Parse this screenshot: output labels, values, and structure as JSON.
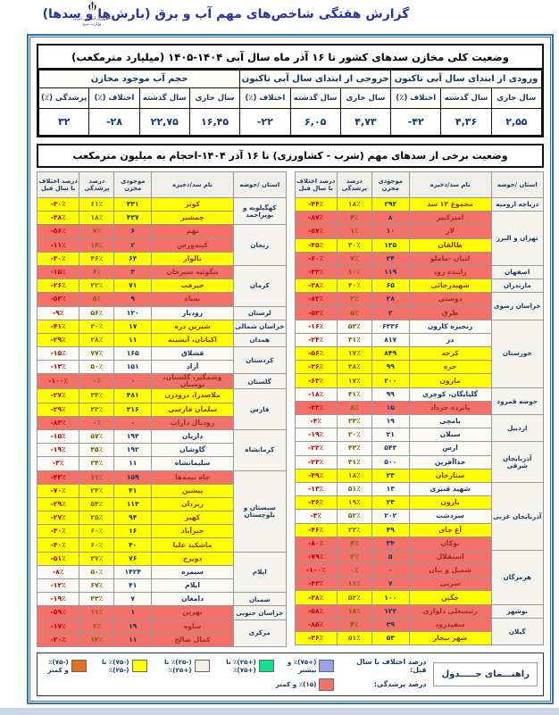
{
  "page": {
    "title": "گزارش هفتگی شاخص‌های مهم آب و برق (بارش‌ها و سدها)",
    "logo_line1": "جمهوری اسلامی ایران",
    "logo_line2": "وزارت نیرو"
  },
  "summary_table": {
    "title": "وضعیت کلی مخازن سدهای کشور تا ۱۶ آذر ماه سال آبی ۱۴۰۴-۱۴۰۵ (میلیارد مترمکعب)",
    "groups": [
      {
        "label": "ورودی از ابتدای سال آبی تاکنون",
        "cols": [
          "سال جاری",
          "سال گذشته",
          "اختلاف (٪)"
        ],
        "values": [
          "۲,۵۵",
          "۴,۳۶",
          "-۴۲"
        ]
      },
      {
        "label": "خروجی از ابتدای سال آبی تاکنون",
        "cols": [
          "سال جاری",
          "سال گذشته",
          "اختلاف (٪)"
        ],
        "values": [
          "۴,۷۳",
          "۶,۰۵",
          "-۲۲"
        ]
      },
      {
        "label": "حجم آب موجود مخازن",
        "cols": [
          "سال جاری",
          "سال گذشته",
          "اختلاف (٪)",
          "پرشدگی (٪)"
        ],
        "values": [
          "۱۶,۴۵",
          "۲۲,۷۵",
          "-۲۸",
          "۳۲"
        ]
      }
    ]
  },
  "dams_table": {
    "title": "وضعیت برخی از سدهای مهم (شرب - کشاورزی) تا ۱۶ آذر ۱۴۰۴-احجام به میلیون مترمکعب",
    "columns": [
      "استان /حوضه",
      "نام سد/ذخیره",
      "موجودی مخزن",
      "درصد پرشدگی",
      "درصد اختلاف با سال قبل"
    ],
    "right_rows": [
      {
        "province": "دریاچه ارومیه",
        "span": 1,
        "dam": "مجموع ۱۳ سد",
        "storage": "۲۹۲",
        "fill": "۱۸٪",
        "diff": "-۴۴٪",
        "color": "yellow"
      },
      {
        "province": "تهران و البرز",
        "span": 4,
        "dam": "امیرکبیر",
        "storage": "۸",
        "fill": "۴٪",
        "diff": "-۸۷٪",
        "color": "red"
      },
      {
        "dam": "لار",
        "storage": "۱۰",
        "fill": "۱٪",
        "diff": "-۵۷٪",
        "color": "red"
      },
      {
        "dam": "طالقان",
        "storage": "۱۲۵",
        "fill": "۳۰٪",
        "diff": "-۴۵٪",
        "color": "yellow"
      },
      {
        "dam": "لتیان -ماملو",
        "storage": "۲۴",
        "fill": "۷٪",
        "diff": "-۶۰٪",
        "color": "red"
      },
      {
        "province": "اصفهان",
        "span": 1,
        "dam": "زاینده رود",
        "storage": "۱۱۹",
        "fill": "۱۰٪",
        "diff": "-۳۳٪",
        "color": "red"
      },
      {
        "province": "مازندران",
        "span": 1,
        "dam": "شهیدرجائی",
        "storage": "۶۵",
        "fill": "۴۰٪",
        "diff": "-۳۸٪",
        "color": "yellow"
      },
      {
        "province": "خراسان رضوی",
        "span": 2,
        "dam": "دوستی",
        "storage": "۲۸",
        "fill": "۲٪",
        "diff": "-۸۳٪",
        "color": "red"
      },
      {
        "dam": "طرق",
        "storage": "۲",
        "fill": "۵٪",
        "diff": "-۵۳٪",
        "color": "red"
      },
      {
        "province": "خوزستان",
        "span": 5,
        "dam": "زنجیره کارون",
        "storage": "۶۳۳۶",
        "fill": "۵۳٪",
        "diff": "-۱۶٪",
        "color": "white"
      },
      {
        "dam": "دز",
        "storage": "۸۱۷",
        "fill": "۳۱٪",
        "diff": "-۲۴٪",
        "color": "white"
      },
      {
        "dam": "کرخه",
        "storage": "۸۴۹",
        "fill": "۱۷٪",
        "diff": "-۵۶٪",
        "color": "yellow"
      },
      {
        "dam": "جره",
        "storage": "۹۹",
        "fill": "۳۸٪",
        "diff": "-۳۶٪",
        "color": "yellow"
      },
      {
        "dam": "مارون",
        "storage": "۲۰۰",
        "fill": "۱۷٪",
        "diff": "-۶۳٪",
        "color": "yellow"
      },
      {
        "province": "حوضه قمرود",
        "span": 2,
        "dam": "گلپایگان، کوچری",
        "storage": "۹۹",
        "fill": "۴۱٪",
        "diff": "-۱۸٪",
        "color": "white"
      },
      {
        "dam": "پانزده خرداد",
        "storage": "۱۵",
        "fill": "۸٪",
        "diff": "-۲۳٪",
        "color": "red"
      },
      {
        "province": "اردبیل",
        "span": 2,
        "dam": "یامچی",
        "storage": "۱۹",
        "fill": "۲۳٪",
        "diff": "-۴٪",
        "color": "white"
      },
      {
        "dam": "سبلان",
        "storage": "۲۱",
        "fill": "۲۰٪",
        "diff": "-۱۹٪",
        "color": "white"
      },
      {
        "province": "آذربایجان شرقی",
        "span": 3,
        "dam": "ارس",
        "storage": "۵۴۳",
        "fill": "۴۳٪",
        "diff": "-۲۳٪",
        "color": "white"
      },
      {
        "dam": "خداآفرین",
        "storage": "۵۰۰",
        "fill": "۳۱٪",
        "diff": "-۲۳٪",
        "color": "white"
      },
      {
        "dam": "ستارخان",
        "storage": "۲۳",
        "fill": "۱۸٪",
        "diff": "-۴۹٪",
        "color": "yellow"
      },
      {
        "province": "آذربایجان غربی",
        "span": 5,
        "dam": "شهید قنبری",
        "storage": "۱۳",
        "fill": "۵۱٪",
        "diff": "-۱۳٪",
        "color": "white"
      },
      {
        "dam": "بارون",
        "storage": "۲۳",
        "fill": "۱۹٪",
        "diff": "-۳۶٪",
        "color": "yellow"
      },
      {
        "dam": "سردشت",
        "storage": "۲۰۲",
        "fill": "۵۲٪",
        "diff": "-۳٪",
        "color": "white"
      },
      {
        "dam": "آغ چای",
        "storage": "۴۹",
        "fill": "۲۳٪",
        "diff": "-۴۶٪",
        "color": "yellow"
      },
      {
        "dam": "بوکان",
        "storage": "۳۴",
        "fill": "۴٪",
        "diff": "-۸۰٪",
        "color": "red"
      },
      {
        "province": "هرمزگان",
        "span": 4,
        "dam": "استقلال",
        "storage": "۵",
        "fill": "۲٪",
        "diff": "-۷۹٪",
        "color": "red"
      },
      {
        "dam": "شمیل و نیان",
        "storage": "۰",
        "fill": "۰٪",
        "diff": "-۱۰۰٪",
        "color": "red"
      },
      {
        "dam": "سرنی",
        "storage": "۷",
        "fill": "۱۱٪",
        "diff": "-۴۳٪",
        "color": "red"
      },
      {
        "dam": "جگین",
        "storage": "۱۰۰",
        "fill": "۵۲٪",
        "diff": "-۳۸٪",
        "color": "yellow"
      },
      {
        "province": "بوشهر",
        "span": 1,
        "dam": "رئیسعلی دلواری",
        "storage": "۱۲۲",
        "fill": "۱۸٪",
        "diff": "-۵۸٪",
        "color": "red"
      },
      {
        "province": "گیلان",
        "span": 2,
        "dam": "سفیدرود",
        "storage": "۳۹",
        "fill": "۴٪",
        "diff": "-۸۵٪",
        "color": "red"
      },
      {
        "dam": "شهر بیجار",
        "storage": "۵۳",
        "fill": "۵۱٪",
        "diff": "-۳۶٪",
        "color": "yellow"
      }
    ],
    "left_rows": [
      {
        "province": "کهگیلویه و بویراحمد",
        "span": 2,
        "dam": "کوثر",
        "storage": "۳۳۱",
        "fill": "۶۱٪",
        "diff": "-۳۰٪",
        "color": "yellow"
      },
      {
        "dam": "چمشیر",
        "storage": "۴۳۷",
        "fill": "۱۸٪",
        "diff": "-۳۸٪",
        "color": "yellow"
      },
      {
        "province": "زنجان",
        "span": 3,
        "dam": "تهم",
        "storage": "۶",
        "fill": "۷٪",
        "diff": "-۵۶٪",
        "color": "red"
      },
      {
        "dam": "کینه‌ورس",
        "storage": "۲",
        "fill": "۱۴٪",
        "diff": "-۱۱٪",
        "color": "red"
      },
      {
        "dam": "تالوار",
        "storage": "۶۴",
        "fill": "۴۶٪",
        "diff": "-۳۰٪",
        "color": "yellow"
      },
      {
        "province": "کرمان",
        "span": 3,
        "dam": "تنگوئیه سیرجان",
        "storage": "۳",
        "fill": "۶٪",
        "diff": "-۱۵٪",
        "color": "red"
      },
      {
        "dam": "جیرفت",
        "storage": "۷۱",
        "fill": "۲۲٪",
        "diff": "-۲۶٪",
        "color": "yellow"
      },
      {
        "dam": "نساء",
        "storage": "۹",
        "fill": "۵٪",
        "diff": "-۵۳٪",
        "color": "red"
      },
      {
        "province": "لرستان",
        "span": 1,
        "dam": "رودبار",
        "storage": "۱۲۰",
        "fill": "۵۶٪",
        "diff": "-۹٪",
        "color": "white"
      },
      {
        "province": "خراسان شمالی",
        "span": 1,
        "dam": "شیرین دره",
        "storage": "۱۷",
        "fill": "۳۰٪",
        "diff": "-۴۱٪",
        "color": "yellow"
      },
      {
        "province": "همدان",
        "span": 1,
        "dam": "اکباتان، آبشینه",
        "storage": "۱۱",
        "fill": "۲۸٪",
        "diff": "-۲۹٪",
        "color": "yellow"
      },
      {
        "province": "کردستان",
        "span": 2,
        "dam": "قشلاق",
        "storage": "۱۶۵",
        "fill": "۷۷٪",
        "diff": "-۱۵٪",
        "color": "white"
      },
      {
        "dam": "آزاد",
        "storage": "۱۵۱",
        "fill": "۵۰٪",
        "diff": "-۱۳٪",
        "color": "white"
      },
      {
        "province": "گلستان",
        "span": 1,
        "dam": "وشمگیر، گلستان، بوستان",
        "storage": "۰",
        "fill": "۰٪",
        "diff": "-۱۰۰٪",
        "color": "red"
      },
      {
        "province": "فارس",
        "span": 3,
        "dam": "ملاصدرا، درودزن",
        "storage": "۴۸۱",
        "fill": "۳۴٪",
        "diff": "-۲۷٪",
        "color": "yellow"
      },
      {
        "dam": "سلمان فارسی",
        "storage": "۳۱۶",
        "fill": "۳۳٪",
        "diff": "-۲۹٪",
        "color": "yellow"
      },
      {
        "dam": "رودبال داراب",
        "storage": "۰",
        "fill": "۰٪",
        "diff": "-۸۳٪",
        "color": "red"
      },
      {
        "province": "کرمانشاه",
        "span": 3,
        "dam": "داریان",
        "storage": "۱۹۳",
        "fill": "۵۷٪",
        "diff": "-۱۵٪",
        "color": "white"
      },
      {
        "dam": "گاوشان",
        "storage": "۱۹۲",
        "fill": "۳۵٪",
        "diff": "-۱۹٪",
        "color": "white"
      },
      {
        "dam": "سلیمانشاه",
        "storage": "۱۱",
        "fill": "۲۴٪",
        "diff": "-۳٪",
        "color": "white"
      },
      {
        "province": "سیستان و بلوچستان",
        "span": 6,
        "dam": "چاه نیمه‌ها",
        "storage": "۱۵۹",
        "fill": "۱۱٪",
        "diff": "-۴۳٪",
        "color": "red"
      },
      {
        "dam": "پیشین",
        "storage": "۴۱",
        "fill": "۲۴٪",
        "diff": "-۷۰٪",
        "color": "yellow"
      },
      {
        "dam": "زیردان",
        "storage": "۱۱۳",
        "fill": "۵۴٪",
        "diff": "-۲۹٪",
        "color": "yellow"
      },
      {
        "dam": "کهیر",
        "storage": "۹۴",
        "fill": "۲۵٪",
        "diff": "-۲۷٪",
        "color": "yellow"
      },
      {
        "dam": "خیرآباد",
        "storage": "۱۶",
        "fill": "۶۰٪",
        "diff": "-۳۰٪",
        "color": "yellow"
      },
      {
        "dam": "ماشکید علیا",
        "storage": "۴۰",
        "fill": "۶۰٪",
        "diff": "-۳۰٪",
        "color": "yellow"
      },
      {
        "province": "ایلام",
        "span": 3,
        "dam": "دویرج",
        "storage": "۷۶",
        "fill": "۳۷٪",
        "diff": "-۵۱٪",
        "color": "yellow"
      },
      {
        "dam": "سیمره",
        "storage": "۱۴۲۴",
        "fill": "۵۰٪",
        "diff": "-۸٪",
        "color": "white"
      },
      {
        "dam": "ایلام",
        "storage": "۴۱",
        "fill": "۶۷٪",
        "diff": "-۱۲٪",
        "color": "white"
      },
      {
        "province": "سمنان",
        "span": 1,
        "dam": "دامغان",
        "storage": "۷",
        "fill": "۴۳٪",
        "diff": "-۱۹٪",
        "color": "white"
      },
      {
        "province": "خراسان جنوبی",
        "span": 1,
        "dam": "نهرین",
        "storage": "۱",
        "fill": "۱۱٪",
        "diff": "-۵۹٪",
        "color": "red"
      },
      {
        "province": "مرکزی",
        "span": 2,
        "dam": "ساوه",
        "storage": "۱۹",
        "fill": "۶٪",
        "diff": "-۱۷٪",
        "color": "red"
      },
      {
        "dam": "کمال صالح",
        "storage": "۱۱",
        "fill": "۱۲٪",
        "diff": "-۳۰٪",
        "color": "red"
      }
    ]
  },
  "legend": {
    "title": "راهنـــمای جـــــدول",
    "diff_label": "درصد اختلاف با سال قبل:",
    "fill_label": "درصد پرشدگی:",
    "diff_items": [
      {
        "name": "purple",
        "color": "#9d9dea",
        "label": "(+۷۵)٪ و بیشتر"
      },
      {
        "name": "green",
        "color": "#12e08c",
        "label": "(+۲۵)٪ تا (+۷۵)٪"
      },
      {
        "name": "white",
        "color": "#f2efe9",
        "label": "(-۲۵)٪ تا (+۲۵)٪"
      },
      {
        "name": "yellow",
        "color": "#ffff00",
        "label": "(-۷۵)٪ تا (-۲۵)٪"
      },
      {
        "name": "orange",
        "color": "#e0731d",
        "label": "(-۷۵)٪ و کمتر"
      }
    ],
    "fill_items": [
      {
        "name": "red",
        "color": "#f4716a",
        "label": "(۱۵)٪ و کمتر"
      }
    ]
  }
}
